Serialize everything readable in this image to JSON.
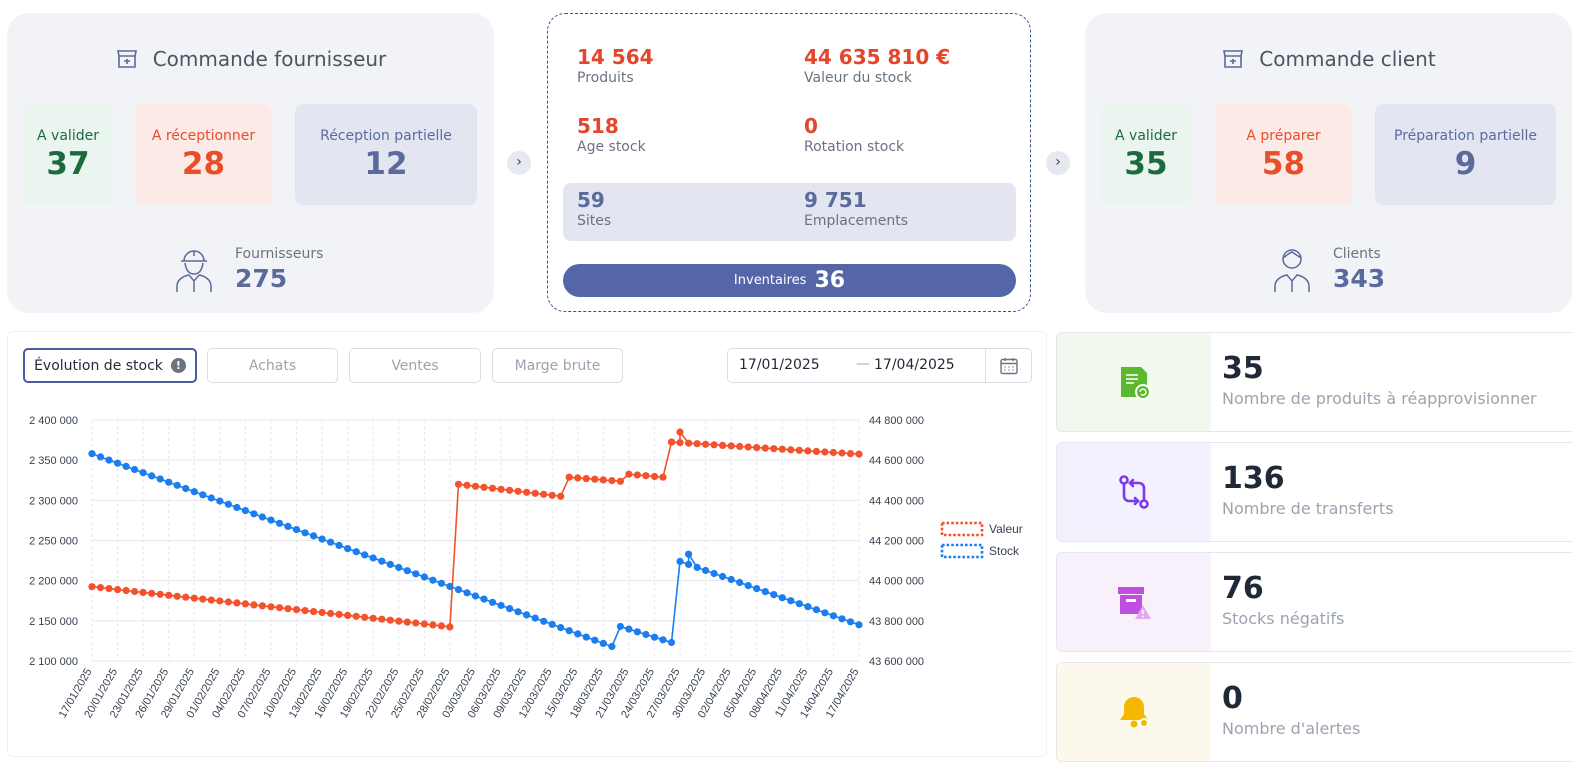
{
  "supplier": {
    "title": "Commande fournisseur",
    "stats": [
      {
        "label": "A valider",
        "value": "37"
      },
      {
        "label": "A réceptionner",
        "value": "28"
      },
      {
        "label": "Réception partielle",
        "value": "12"
      }
    ],
    "people_label": "Fournisseurs",
    "people_value": "275"
  },
  "center": {
    "products_value": "14 564",
    "products_label": "Produits",
    "stock_value_value": "44 635 810 €",
    "stock_value_label": "Valeur du stock",
    "age_value": "518",
    "age_label": "Age stock",
    "rotation_value": "0",
    "rotation_label": "Rotation stock",
    "sites_value": "59",
    "sites_label": "Sites",
    "locations_value": "9 751",
    "locations_label": "Emplacements",
    "inventory_label": "Inventaires",
    "inventory_value": "36"
  },
  "client": {
    "title": "Commande client",
    "stats": [
      {
        "label": "A valider",
        "value": "35"
      },
      {
        "label": "A préparer",
        "value": "58"
      },
      {
        "label": "Préparation partielle",
        "value": "9"
      }
    ],
    "people_label": "Clients",
    "people_value": "343"
  },
  "tabs": [
    "Évolution de stock",
    "Achats",
    "Ventes",
    "Marge brute"
  ],
  "date_from": "17/01/2025",
  "date_to": "17/04/2025",
  "side_stats": [
    {
      "value": "35",
      "label": "Nombre de produits à réapprovisionner",
      "icon": "restock-icon",
      "bg": "#f3f8ee",
      "color": "#5cb82e"
    },
    {
      "value": "136",
      "label": "Nombre de transferts",
      "icon": "transfer-icon",
      "bg": "#f3f1fd",
      "color": "#7c3aed"
    },
    {
      "value": "76",
      "label": "Stocks négatifs",
      "icon": "negative-stock-icon",
      "bg": "#f8f1fc",
      "color": "#c04fe0"
    },
    {
      "value": "0",
      "label": "Nombre d'alertes",
      "icon": "bell-icon",
      "bg": "#fdf8ec",
      "color": "#f5b800"
    }
  ],
  "colors": {
    "red": "#f4512c",
    "blue": "#1a7df0",
    "navy": "#5566a8"
  },
  "chart_data": {
    "type": "line",
    "x_ticks": [
      "17/01/2025",
      "20/01/2025",
      "23/01/2025",
      "26/01/2025",
      "29/01/2025",
      "01/02/2025",
      "04/02/2025",
      "07/02/2025",
      "10/02/2025",
      "13/02/2025",
      "16/02/2025",
      "19/02/2025",
      "22/02/2025",
      "25/02/2025",
      "28/02/2025",
      "03/03/2025",
      "06/03/2025",
      "09/03/2025",
      "12/03/2025",
      "15/03/2025",
      "18/03/2025",
      "21/03/2025",
      "24/03/2025",
      "27/03/2025",
      "30/03/2025",
      "02/04/2025",
      "05/04/2025",
      "08/04/2025",
      "11/04/2025",
      "14/04/2025",
      "17/04/2025"
    ],
    "y_left": {
      "ticks": [
        "2 400 000",
        "2 350 000",
        "2 300 000",
        "2 250 000",
        "2 200 000",
        "2 150 000",
        "2 100 000"
      ],
      "lim": [
        2100000,
        2400000
      ]
    },
    "y_right": {
      "ticks": [
        "44 800 000",
        "44 600 000",
        "44 400 000",
        "44 200 000",
        "44 000 000",
        "43 800 000",
        "43 600 000"
      ],
      "lim": [
        43600000,
        44800000
      ]
    },
    "legend_position": "right",
    "series": [
      {
        "name": "Valeur",
        "axis": "right",
        "color": "#f4512c",
        "segments": [
          {
            "start": "17/01/2025",
            "end": "28/02/2025",
            "from": 43970000,
            "to": 43770000
          },
          {
            "start": "01/03/2025",
            "end": "13/03/2025",
            "from": 44480000,
            "to": 44420000
          },
          {
            "start": "14/03/2025",
            "end": "20/03/2025",
            "from": 44515000,
            "to": 44495000
          },
          {
            "start": "21/03/2025",
            "end": "25/03/2025",
            "from": 44530000,
            "to": 44515000
          },
          {
            "start": "26/03/2025",
            "end": "17/04/2025",
            "from": 44690000,
            "to": 44630000
          }
        ],
        "points": [
          {
            "x": "26/03/2025",
            "y": 44690000
          },
          {
            "x": "27/03/2025",
            "y": 44740000
          }
        ]
      },
      {
        "name": "Stock",
        "axis": "left",
        "color": "#1a7df0",
        "segments": [
          {
            "start": "17/01/2025",
            "end": "19/03/2025",
            "from": 2358000,
            "to": 2118000
          },
          {
            "start": "20/03/2025",
            "end": "26/03/2025",
            "from": 2143000,
            "to": 2123000
          },
          {
            "start": "27/03/2025",
            "end": "17/04/2025",
            "from": 2224000,
            "to": 2145000
          }
        ],
        "points": [
          {
            "x": "28/03/2025",
            "y": 2233000
          }
        ]
      }
    ]
  }
}
